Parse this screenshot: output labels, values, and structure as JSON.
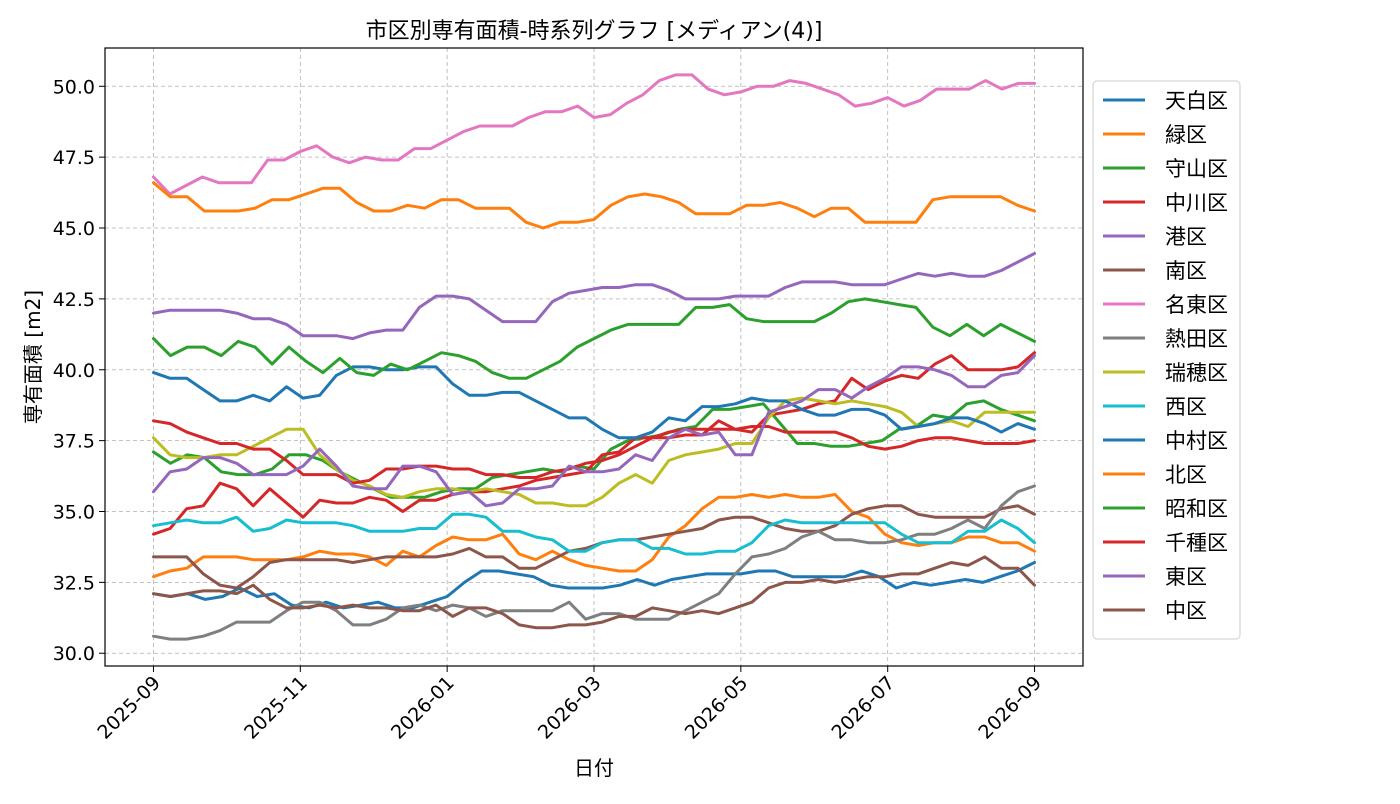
{
  "chart_data": {
    "type": "line",
    "title": "市区別専有面積-時系列グラフ [メディアン(4)]",
    "xlabel": "日付",
    "ylabel": "専有面積 [m2]",
    "x_ticks": [
      "2025-09",
      "2025-11",
      "2026-01",
      "2026-03",
      "2026-05",
      "2026-07",
      "2026-09"
    ],
    "y_ticks": [
      30.0,
      32.5,
      35.0,
      37.5,
      40.0,
      42.5,
      45.0,
      47.5,
      50.0
    ],
    "ylim": [
      29.55,
      51.35
    ],
    "xlim": [
      -0.055,
      1.055
    ],
    "x_range": [
      "2025-09",
      "2026-09"
    ],
    "grid": true,
    "legend_position": "right",
    "series": [
      {
        "name": "天白区",
        "color": "#1f77b4",
        "values": [
          32.1,
          32.0,
          32.1,
          31.9,
          32.0,
          32.3,
          32.0,
          32.1,
          31.7,
          31.6,
          31.8,
          31.6,
          31.7,
          31.8,
          31.6,
          31.6,
          31.8,
          32.0,
          32.5,
          32.9,
          32.9,
          32.8,
          32.7,
          32.4,
          32.3,
          32.3,
          32.3,
          32.4,
          32.6,
          32.4,
          32.6,
          32.7,
          32.8,
          32.8,
          32.8,
          32.9,
          32.9,
          32.7,
          32.7,
          32.7,
          32.7,
          32.9,
          32.7,
          32.3,
          32.5,
          32.4,
          32.5,
          32.6,
          32.5,
          32.7,
          32.9,
          33.2
        ]
      },
      {
        "name": "緑区",
        "color": "#ff7f0e",
        "values": [
          32.7,
          32.9,
          33.0,
          33.4,
          33.4,
          33.4,
          33.3,
          33.3,
          33.3,
          33.4,
          33.6,
          33.5,
          33.5,
          33.4,
          33.1,
          33.6,
          33.4,
          33.8,
          34.1,
          34.0,
          34.0,
          34.2,
          33.5,
          33.3,
          33.6,
          33.3,
          33.1,
          33.0,
          32.9,
          32.9,
          33.3,
          34.1,
          34.5,
          35.1,
          35.5,
          35.5,
          35.6,
          35.5,
          35.6,
          35.5,
          35.5,
          35.6,
          35.0,
          34.8,
          34.2,
          33.9,
          33.8,
          33.9,
          33.9,
          34.1,
          34.1,
          33.9,
          33.9,
          33.6
        ]
      },
      {
        "name": "守山区",
        "color": "#2ca02c",
        "values": [
          37.1,
          36.7,
          37.0,
          36.9,
          36.4,
          36.3,
          36.3,
          36.5,
          37.0,
          37.0,
          36.8,
          36.4,
          36.1,
          35.8,
          35.5,
          35.5,
          35.5,
          35.7,
          35.8,
          35.8,
          36.2,
          36.3,
          36.4,
          36.5,
          36.4,
          36.6,
          36.5,
          37.2,
          37.5,
          37.6,
          37.7,
          37.9,
          38.0,
          38.6,
          38.6,
          38.7,
          38.8,
          38.1,
          37.4,
          37.4,
          37.3,
          37.3,
          37.4,
          37.5,
          37.9,
          38.0,
          38.4,
          38.3,
          38.8,
          38.9,
          38.6,
          38.4,
          38.2
        ]
      },
      {
        "name": "中川区",
        "color": "#d62728",
        "values": [
          34.2,
          34.4,
          35.1,
          35.2,
          36.0,
          35.8,
          35.2,
          35.8,
          35.3,
          34.8,
          35.4,
          35.3,
          35.3,
          35.5,
          35.4,
          35.0,
          35.4,
          35.4,
          35.6,
          35.7,
          35.7,
          35.8,
          35.9,
          36.1,
          36.2,
          36.3,
          36.4,
          37.0,
          37.1,
          37.6,
          37.6,
          37.6,
          37.7,
          37.7,
          38.2,
          37.9,
          37.8,
          38.4,
          38.5,
          38.6,
          38.8,
          38.9,
          39.7,
          39.3,
          39.6,
          39.8,
          39.7,
          40.2,
          40.5,
          40.0,
          40.0,
          40.0,
          40.1,
          40.6
        ]
      },
      {
        "name": "港区",
        "color": "#9467bd",
        "values": [
          42.0,
          42.1,
          42.1,
          42.1,
          42.1,
          42.0,
          41.8,
          41.8,
          41.6,
          41.2,
          41.2,
          41.2,
          41.1,
          41.3,
          41.4,
          41.4,
          42.2,
          42.6,
          42.6,
          42.5,
          42.1,
          41.7,
          41.7,
          41.7,
          42.4,
          42.7,
          42.8,
          42.9,
          42.9,
          43.0,
          43.0,
          42.8,
          42.5,
          42.5,
          42.5,
          42.6,
          42.6,
          42.6,
          42.9,
          43.1,
          43.1,
          43.1,
          43.0,
          43.0,
          43.0,
          43.2,
          43.4,
          43.3,
          43.4,
          43.3,
          43.3,
          43.5,
          43.8,
          44.1
        ]
      },
      {
        "name": "南区",
        "color": "#8c564b",
        "values": [
          33.4,
          33.4,
          33.4,
          32.8,
          32.4,
          32.3,
          32.7,
          33.2,
          33.3,
          33.3,
          33.3,
          33.3,
          33.2,
          33.3,
          33.4,
          33.4,
          33.4,
          33.4,
          33.5,
          33.7,
          33.4,
          33.4,
          33.0,
          33.0,
          33.3,
          33.6,
          33.7,
          33.9,
          34.0,
          34.0,
          34.1,
          34.2,
          34.3,
          34.4,
          34.7,
          34.8,
          34.8,
          34.6,
          34.4,
          34.3,
          34.3,
          34.5,
          34.9,
          35.1,
          35.2,
          35.2,
          34.9,
          34.8,
          34.8,
          34.8,
          34.8,
          35.1,
          35.2,
          34.9
        ]
      },
      {
        "name": "名東区",
        "color": "#e377c2",
        "values": [
          46.8,
          46.2,
          46.5,
          46.8,
          46.6,
          46.6,
          46.6,
          47.4,
          47.4,
          47.7,
          47.9,
          47.5,
          47.3,
          47.5,
          47.4,
          47.4,
          47.8,
          47.8,
          48.1,
          48.4,
          48.6,
          48.6,
          48.6,
          48.9,
          49.1,
          49.1,
          49.3,
          48.9,
          49.0,
          49.4,
          49.7,
          50.2,
          50.4,
          50.4,
          49.9,
          49.7,
          49.8,
          50.0,
          50.0,
          50.2,
          50.1,
          49.9,
          49.7,
          49.3,
          49.4,
          49.6,
          49.3,
          49.5,
          49.9,
          49.9,
          49.9,
          50.2,
          49.9,
          50.1,
          50.1
        ]
      },
      {
        "name": "熱田区",
        "color": "#7f7f7f",
        "values": [
          30.6,
          30.5,
          30.5,
          30.6,
          30.8,
          31.1,
          31.1,
          31.1,
          31.5,
          31.8,
          31.8,
          31.5,
          31.0,
          31.0,
          31.2,
          31.6,
          31.7,
          31.5,
          31.7,
          31.6,
          31.3,
          31.5,
          31.5,
          31.5,
          31.5,
          31.8,
          31.2,
          31.4,
          31.4,
          31.2,
          31.2,
          31.2,
          31.5,
          31.8,
          32.1,
          32.8,
          33.4,
          33.5,
          33.7,
          34.1,
          34.3,
          34.0,
          34.0,
          33.9,
          33.9,
          34.0,
          34.2,
          34.2,
          34.4,
          34.7,
          34.4,
          35.2,
          35.7,
          35.9
        ]
      },
      {
        "name": "瑞穂区",
        "color": "#bcbd22",
        "values": [
          37.6,
          37.0,
          36.9,
          36.9,
          37.0,
          37.0,
          37.3,
          37.6,
          37.9,
          37.9,
          37.0,
          36.5,
          36.1,
          35.9,
          35.6,
          35.5,
          35.7,
          35.8,
          35.8,
          35.7,
          35.8,
          35.7,
          35.6,
          35.3,
          35.3,
          35.2,
          35.2,
          35.5,
          36.0,
          36.3,
          36.0,
          36.8,
          37.0,
          37.1,
          37.2,
          37.4,
          37.4,
          38.3,
          38.9,
          39.0,
          38.9,
          38.8,
          38.9,
          38.8,
          38.7,
          38.5,
          38.0,
          38.1,
          38.2,
          38.0,
          38.5,
          38.5,
          38.5,
          38.5
        ]
      },
      {
        "name": "西区",
        "color": "#17becf",
        "values": [
          34.5,
          34.6,
          34.7,
          34.6,
          34.6,
          34.8,
          34.3,
          34.4,
          34.7,
          34.6,
          34.6,
          34.6,
          34.5,
          34.3,
          34.3,
          34.3,
          34.4,
          34.4,
          34.9,
          34.9,
          34.8,
          34.3,
          34.3,
          34.1,
          34.0,
          33.6,
          33.6,
          33.9,
          34.0,
          34.0,
          33.7,
          33.7,
          33.5,
          33.5,
          33.6,
          33.6,
          33.9,
          34.5,
          34.7,
          34.6,
          34.6,
          34.6,
          34.6,
          34.6,
          34.6,
          34.2,
          33.9,
          33.9,
          33.9,
          34.3,
          34.3,
          34.7,
          34.4,
          33.9
        ]
      },
      {
        "name": "中村区",
        "color": "#1f77b4",
        "values": [
          39.9,
          39.7,
          39.7,
          39.3,
          38.9,
          38.9,
          39.1,
          38.9,
          39.4,
          39.0,
          39.1,
          39.8,
          40.1,
          40.1,
          40.0,
          40.0,
          40.1,
          40.1,
          39.5,
          39.1,
          39.1,
          39.2,
          39.2,
          38.9,
          38.6,
          38.3,
          38.3,
          37.9,
          37.6,
          37.6,
          37.8,
          38.3,
          38.2,
          38.7,
          38.7,
          38.8,
          39.0,
          38.9,
          38.9,
          38.6,
          38.4,
          38.4,
          38.6,
          38.6,
          38.4,
          37.9,
          38.0,
          38.1,
          38.3,
          38.3,
          38.1,
          37.8,
          38.1,
          37.9
        ]
      },
      {
        "name": "北区",
        "color": "#ff7f0e",
        "values": [
          46.6,
          46.1,
          46.1,
          45.6,
          45.6,
          45.6,
          45.7,
          46.0,
          46.0,
          46.2,
          46.4,
          46.4,
          45.9,
          45.6,
          45.6,
          45.8,
          45.7,
          46.0,
          46.0,
          45.7,
          45.7,
          45.7,
          45.2,
          45.0,
          45.2,
          45.2,
          45.3,
          45.8,
          46.1,
          46.2,
          46.1,
          45.9,
          45.5,
          45.5,
          45.5,
          45.8,
          45.8,
          45.9,
          45.7,
          45.4,
          45.7,
          45.7,
          45.2,
          45.2,
          45.2,
          45.2,
          46.0,
          46.1,
          46.1,
          46.1,
          46.1,
          45.8,
          45.6
        ]
      },
      {
        "name": "昭和区",
        "color": "#2ca02c",
        "values": [
          41.1,
          40.5,
          40.8,
          40.8,
          40.5,
          41.0,
          40.8,
          40.2,
          40.8,
          40.3,
          39.9,
          40.4,
          39.9,
          39.8,
          40.2,
          40.0,
          40.3,
          40.6,
          40.5,
          40.3,
          39.9,
          39.7,
          39.7,
          40.0,
          40.3,
          40.8,
          41.1,
          41.4,
          41.6,
          41.6,
          41.6,
          41.6,
          42.2,
          42.2,
          42.3,
          41.8,
          41.7,
          41.7,
          41.7,
          41.7,
          42.0,
          42.4,
          42.5,
          42.4,
          42.3,
          42.2,
          41.5,
          41.2,
          41.6,
          41.2,
          41.6,
          41.3,
          41.0
        ]
      },
      {
        "name": "千種区",
        "color": "#d62728",
        "values": [
          38.2,
          38.1,
          37.8,
          37.6,
          37.4,
          37.4,
          37.2,
          37.2,
          36.8,
          36.3,
          36.3,
          36.3,
          36.0,
          36.1,
          36.5,
          36.5,
          36.6,
          36.6,
          36.5,
          36.5,
          36.3,
          36.3,
          36.2,
          36.2,
          36.4,
          36.5,
          36.7,
          36.8,
          37.0,
          37.3,
          37.6,
          37.8,
          37.9,
          37.9,
          37.9,
          37.9,
          38.0,
          38.0,
          37.8,
          37.8,
          37.8,
          37.8,
          37.6,
          37.3,
          37.2,
          37.3,
          37.5,
          37.6,
          37.6,
          37.5,
          37.4,
          37.4,
          37.4,
          37.5
        ]
      },
      {
        "name": "東区",
        "color": "#9467bd",
        "values": [
          35.7,
          36.4,
          36.5,
          36.9,
          36.9,
          36.7,
          36.3,
          36.3,
          36.3,
          36.6,
          37.2,
          36.6,
          35.9,
          35.8,
          35.8,
          36.6,
          36.6,
          36.4,
          35.6,
          35.7,
          35.2,
          35.3,
          35.8,
          35.8,
          35.9,
          36.6,
          36.4,
          36.4,
          36.5,
          37.0,
          36.8,
          37.6,
          37.9,
          37.7,
          37.8,
          37.0,
          37.0,
          38.5,
          38.7,
          38.9,
          39.3,
          39.3,
          39.0,
          39.4,
          39.7,
          40.1,
          40.1,
          40.0,
          39.8,
          39.4,
          39.4,
          39.8,
          39.9,
          40.5
        ]
      },
      {
        "name": "中区",
        "color": "#8c564b",
        "values": [
          32.1,
          32.0,
          32.1,
          32.2,
          32.2,
          32.1,
          32.4,
          31.9,
          31.6,
          31.6,
          31.7,
          31.6,
          31.7,
          31.6,
          31.6,
          31.5,
          31.5,
          31.7,
          31.3,
          31.6,
          31.6,
          31.4,
          31.0,
          30.9,
          30.9,
          31.0,
          31.0,
          31.1,
          31.3,
          31.3,
          31.6,
          31.5,
          31.4,
          31.5,
          31.4,
          31.6,
          31.8,
          32.3,
          32.5,
          32.5,
          32.6,
          32.5,
          32.6,
          32.7,
          32.7,
          32.8,
          32.8,
          33.0,
          33.2,
          33.1,
          33.4,
          33.0,
          33.0,
          32.4
        ]
      }
    ]
  }
}
